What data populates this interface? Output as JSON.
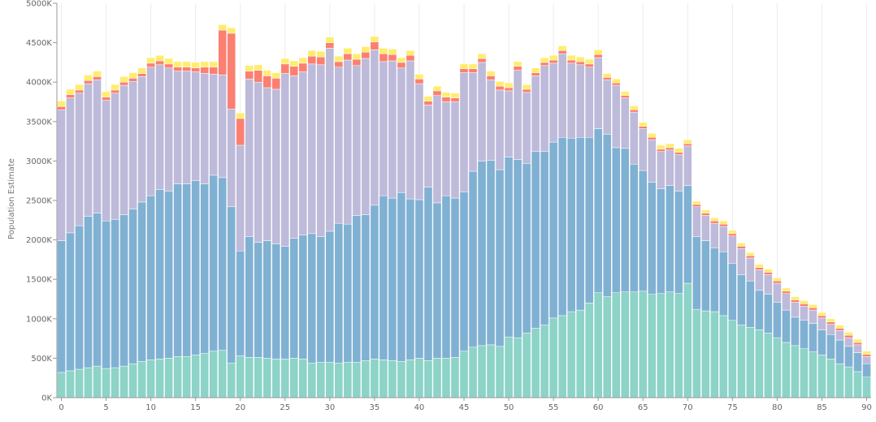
{
  "chart_data": {
    "type": "bar",
    "stacked": true,
    "ylabel": "Population Estimate",
    "xlabel": "",
    "ylim": [
      0,
      5000000
    ],
    "yticks": [
      {
        "value": 0,
        "label": "0K"
      },
      {
        "value": 500000,
        "label": "500K"
      },
      {
        "value": 1000000,
        "label": "1000K"
      },
      {
        "value": 1500000,
        "label": "1500K"
      },
      {
        "value": 2000000,
        "label": "2000K"
      },
      {
        "value": 2500000,
        "label": "2500K"
      },
      {
        "value": 3000000,
        "label": "3000K"
      },
      {
        "value": 3500000,
        "label": "3500K"
      },
      {
        "value": 4000000,
        "label": "4000K"
      },
      {
        "value": 4500000,
        "label": "4500K"
      },
      {
        "value": 5000000,
        "label": "5000K"
      }
    ],
    "x": [
      0,
      1,
      2,
      3,
      4,
      5,
      6,
      7,
      8,
      9,
      10,
      11,
      12,
      13,
      14,
      15,
      16,
      17,
      18,
      19,
      20,
      21,
      22,
      23,
      24,
      25,
      26,
      27,
      28,
      29,
      30,
      31,
      32,
      33,
      34,
      35,
      36,
      37,
      38,
      39,
      40,
      41,
      42,
      43,
      44,
      45,
      46,
      47,
      48,
      49,
      50,
      51,
      52,
      53,
      54,
      55,
      56,
      57,
      58,
      59,
      60,
      61,
      62,
      63,
      64,
      65,
      66,
      67,
      68,
      69,
      70,
      71,
      72,
      73,
      74,
      75,
      76,
      77,
      78,
      79,
      80,
      81,
      82,
      83,
      84,
      85,
      86,
      87,
      88,
      89,
      90
    ],
    "xticks": [
      0,
      5,
      10,
      15,
      20,
      25,
      30,
      35,
      40,
      45,
      50,
      55,
      60,
      65,
      70,
      75,
      80,
      85,
      90
    ],
    "grid": true,
    "series": [
      {
        "color": "#8dd3c7",
        "values": [
          320000,
          340000,
          360000,
          380000,
          400000,
          370000,
          380000,
          400000,
          430000,
          460000,
          480000,
          490000,
          500000,
          520000,
          520000,
          540000,
          560000,
          590000,
          600000,
          440000,
          530000,
          510000,
          510000,
          500000,
          490000,
          490000,
          500000,
          490000,
          440000,
          450000,
          450000,
          440000,
          450000,
          450000,
          470000,
          490000,
          480000,
          470000,
          460000,
          480000,
          500000,
          470000,
          500000,
          500000,
          510000,
          590000,
          640000,
          660000,
          670000,
          650000,
          770000,
          760000,
          820000,
          880000,
          920000,
          1010000,
          1040000,
          1090000,
          1110000,
          1200000,
          1330000,
          1280000,
          1330000,
          1340000,
          1340000,
          1350000,
          1310000,
          1320000,
          1340000,
          1320000,
          1450000,
          1120000,
          1100000,
          1090000,
          1040000,
          980000,
          920000,
          890000,
          860000,
          820000,
          760000,
          700000,
          660000,
          620000,
          580000,
          540000,
          490000,
          430000,
          390000,
          330000,
          260000
        ]
      },
      {
        "color": "#80b1d3",
        "values": [
          1670000,
          1750000,
          1820000,
          1920000,
          1940000,
          1870000,
          1880000,
          1920000,
          1960000,
          2020000,
          2080000,
          2150000,
          2120000,
          2190000,
          2190000,
          2210000,
          2150000,
          2230000,
          2190000,
          1980000,
          1330000,
          1530000,
          1460000,
          1490000,
          1460000,
          1430000,
          1520000,
          1570000,
          1640000,
          1590000,
          1660000,
          1770000,
          1750000,
          1860000,
          1850000,
          1950000,
          2080000,
          2060000,
          2140000,
          2040000,
          2010000,
          2200000,
          1970000,
          2060000,
          2020000,
          2020000,
          2230000,
          2340000,
          2340000,
          2240000,
          2280000,
          2260000,
          2150000,
          2240000,
          2200000,
          2230000,
          2260000,
          2200000,
          2190000,
          2100000,
          2080000,
          2060000,
          1840000,
          1820000,
          1620000,
          1530000,
          1420000,
          1330000,
          1350000,
          1300000,
          1240000,
          920000,
          890000,
          810000,
          810000,
          720000,
          640000,
          590000,
          500000,
          490000,
          450000,
          410000,
          360000,
          360000,
          360000,
          320000,
          310000,
          300000,
          260000,
          240000,
          170000
        ]
      },
      {
        "color": "#bebada",
        "values": [
          1660000,
          1710000,
          1680000,
          1680000,
          1690000,
          1530000,
          1600000,
          1640000,
          1620000,
          1590000,
          1630000,
          1580000,
          1560000,
          1430000,
          1430000,
          1380000,
          1400000,
          1280000,
          1300000,
          1240000,
          1340000,
          2000000,
          2030000,
          1940000,
          1960000,
          2190000,
          2060000,
          2070000,
          2150000,
          2180000,
          2320000,
          1980000,
          2080000,
          1900000,
          1980000,
          1970000,
          1700000,
          1740000,
          1580000,
          1750000,
          1470000,
          1040000,
          1360000,
          1190000,
          1220000,
          1510000,
          1250000,
          1250000,
          1020000,
          1010000,
          840000,
          1130000,
          900000,
          960000,
          1090000,
          1000000,
          1060000,
          950000,
          920000,
          890000,
          900000,
          690000,
          790000,
          640000,
          660000,
          530000,
          540000,
          470000,
          450000,
          460000,
          500000,
          380000,
          320000,
          310000,
          320000,
          350000,
          330000,
          290000,
          260000,
          250000,
          240000,
          210000,
          190000,
          180000,
          170000,
          150000,
          130000,
          120000,
          110000,
          100000,
          90000
        ]
      },
      {
        "color": "#fb8072",
        "values": [
          40000,
          40000,
          40000,
          40000,
          40000,
          40000,
          40000,
          40000,
          40000,
          40000,
          50000,
          50000,
          50000,
          50000,
          50000,
          50000,
          80000,
          90000,
          570000,
          960000,
          340000,
          100000,
          150000,
          150000,
          140000,
          120000,
          120000,
          110000,
          100000,
          100000,
          70000,
          70000,
          80000,
          80000,
          80000,
          100000,
          100000,
          80000,
          70000,
          70000,
          60000,
          50000,
          60000,
          60000,
          50000,
          50000,
          50000,
          50000,
          50000,
          50000,
          40000,
          50000,
          40000,
          40000,
          40000,
          40000,
          40000,
          40000,
          40000,
          40000,
          40000,
          30000,
          30000,
          30000,
          30000,
          30000,
          30000,
          30000,
          30000,
          30000,
          30000,
          30000,
          30000,
          30000,
          30000,
          30000,
          30000,
          30000,
          30000,
          30000,
          30000,
          30000,
          30000,
          30000,
          30000,
          30000,
          30000,
          30000,
          30000,
          30000,
          30000
        ]
      },
      {
        "color": "#ffed6f",
        "values": [
          70000,
          70000,
          70000,
          70000,
          70000,
          70000,
          70000,
          70000,
          70000,
          70000,
          70000,
          70000,
          70000,
          70000,
          70000,
          70000,
          70000,
          70000,
          70000,
          70000,
          70000,
          70000,
          70000,
          70000,
          70000,
          70000,
          70000,
          70000,
          70000,
          70000,
          70000,
          70000,
          70000,
          70000,
          70000,
          70000,
          70000,
          70000,
          60000,
          60000,
          60000,
          60000,
          60000,
          60000,
          60000,
          60000,
          60000,
          60000,
          60000,
          60000,
          60000,
          60000,
          60000,
          60000,
          60000,
          60000,
          60000,
          60000,
          60000,
          60000,
          60000,
          50000,
          50000,
          50000,
          50000,
          50000,
          50000,
          50000,
          50000,
          50000,
          50000,
          40000,
          40000,
          40000,
          40000,
          40000,
          40000,
          40000,
          40000,
          40000,
          40000,
          40000,
          40000,
          40000,
          40000,
          40000,
          40000,
          40000,
          40000,
          40000,
          40000
        ]
      }
    ]
  }
}
